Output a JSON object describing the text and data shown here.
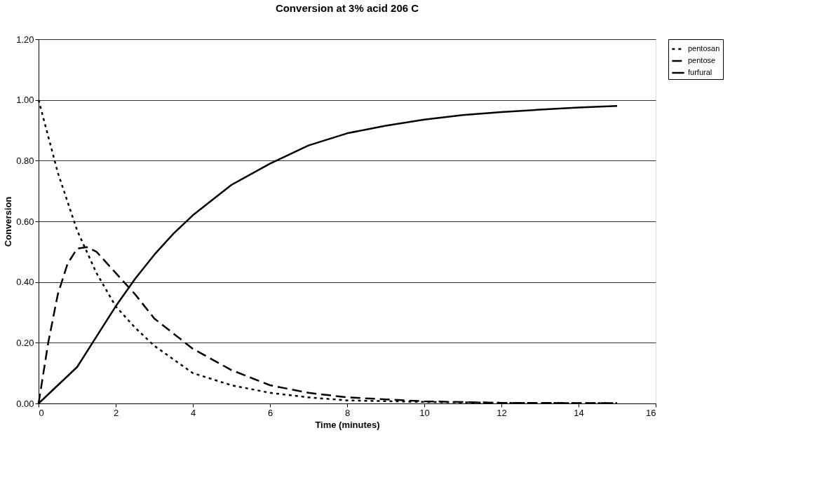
{
  "chart_data": {
    "type": "line",
    "title": "Conversion at 3% acid 206 C",
    "xlabel": "Time (minutes)",
    "ylabel": "Conversion",
    "xlim": [
      0,
      16
    ],
    "xticks": [
      0,
      2,
      4,
      6,
      8,
      10,
      12,
      14,
      16
    ],
    "ylim": [
      0,
      1.2
    ],
    "yticks": [
      {
        "value": 0,
        "label": "0.00"
      },
      {
        "value": 0.2,
        "label": "0.20"
      },
      {
        "value": 0.4,
        "label": "0.40"
      },
      {
        "value": 0.6,
        "label": "0.60"
      },
      {
        "value": 0.8,
        "label": "0.80"
      },
      {
        "value": 1.0,
        "label": "1.00"
      },
      {
        "value": 1.2,
        "label": "1.20"
      }
    ],
    "grid": "y",
    "legend": "right",
    "marker": "none",
    "series": [
      {
        "name": "pentosan",
        "color": "#000000",
        "line_style": "dotted",
        "x": [
          0,
          0.5,
          1,
          1.5,
          2,
          2.5,
          3,
          4,
          5,
          6,
          7,
          8,
          10,
          12,
          15
        ],
        "values": [
          1.0,
          0.76,
          0.57,
          0.43,
          0.32,
          0.25,
          0.19,
          0.1,
          0.06,
          0.035,
          0.02,
          0.01,
          0.005,
          0.002,
          0.001
        ]
      },
      {
        "name": "pentose",
        "color": "#000000",
        "line_style": "dashed",
        "x": [
          0,
          0.25,
          0.5,
          0.75,
          1,
          1.25,
          1.5,
          2,
          2.5,
          3,
          4,
          5,
          6,
          7,
          8,
          10,
          12,
          15
        ],
        "values": [
          0,
          0.2,
          0.36,
          0.46,
          0.51,
          0.515,
          0.5,
          0.43,
          0.36,
          0.28,
          0.18,
          0.11,
          0.06,
          0.035,
          0.02,
          0.007,
          0.002,
          0.001
        ]
      },
      {
        "name": "furfural",
        "color": "#000000",
        "line_style": "solid",
        "x": [
          0,
          0.5,
          1,
          1.5,
          2,
          2.5,
          3,
          3.5,
          4,
          5,
          6,
          7,
          8,
          9,
          10,
          11,
          12,
          13,
          14,
          15
        ],
        "values": [
          0,
          0.06,
          0.12,
          0.22,
          0.32,
          0.41,
          0.49,
          0.56,
          0.62,
          0.72,
          0.79,
          0.85,
          0.89,
          0.915,
          0.935,
          0.95,
          0.96,
          0.968,
          0.975,
          0.98
        ]
      }
    ]
  }
}
